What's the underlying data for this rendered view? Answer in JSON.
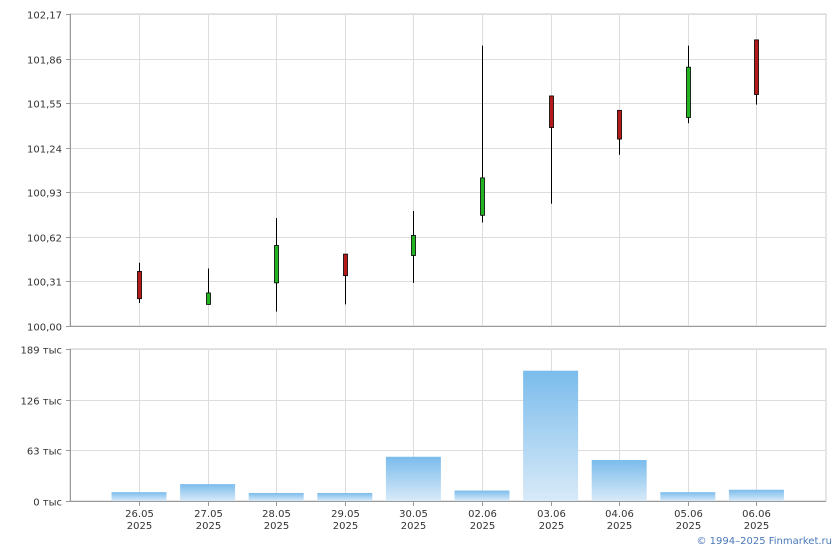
{
  "chart_data": [
    {
      "type": "candlestick",
      "categories": [
        [
          "26.05",
          "2025"
        ],
        [
          "27.05",
          "2025"
        ],
        [
          "28.05",
          "2025"
        ],
        [
          "29.05",
          "2025"
        ],
        [
          "30.05",
          "2025"
        ],
        [
          "02.06",
          "2025"
        ],
        [
          "03.06",
          "2025"
        ],
        [
          "04.06",
          "2025"
        ],
        [
          "05.06",
          "2025"
        ],
        [
          "06.06",
          "2025"
        ]
      ],
      "candles": [
        {
          "open": 100.38,
          "high": 100.44,
          "low": 100.16,
          "close": 100.19
        },
        {
          "open": 100.15,
          "high": 100.4,
          "low": 100.15,
          "close": 100.23
        },
        {
          "open": 100.3,
          "high": 100.75,
          "low": 100.1,
          "close": 100.56
        },
        {
          "open": 100.5,
          "high": 100.5,
          "low": 100.15,
          "close": 100.35
        },
        {
          "open": 100.49,
          "high": 100.8,
          "low": 100.3,
          "close": 100.63
        },
        {
          "open": 100.77,
          "high": 101.95,
          "low": 100.72,
          "close": 101.03
        },
        {
          "open": 101.6,
          "high": 101.6,
          "low": 100.85,
          "close": 101.38
        },
        {
          "open": 101.5,
          "high": 101.5,
          "low": 101.19,
          "close": 101.3
        },
        {
          "open": 101.45,
          "high": 101.95,
          "low": 101.41,
          "close": 101.8
        },
        {
          "open": 101.99,
          "high": 101.99,
          "low": 101.54,
          "close": 101.61
        }
      ],
      "ylim": [
        100.0,
        102.17
      ],
      "yticks": [
        "102,17",
        "101,86",
        "101,55",
        "101,24",
        "100,93",
        "100,62",
        "100,31",
        "100,00"
      ],
      "ytick_values": [
        102.17,
        101.86,
        101.55,
        101.24,
        100.93,
        100.62,
        100.31,
        100.0
      ],
      "up_color": "#22b322",
      "down_color": "#b31919",
      "grid": true
    },
    {
      "type": "bar",
      "values": [
        11000,
        21000,
        10000,
        10000,
        55000,
        13000,
        162000,
        51000,
        11000,
        14000
      ],
      "ylim": [
        0,
        189000
      ],
      "yticks": [
        "189 тыс",
        "126 тыс",
        "63 тыс",
        "0 тыс"
      ],
      "ytick_values": [
        189000,
        126000,
        63000,
        0
      ],
      "bar_color_top": "#7bbcec",
      "bar_color_bottom": "#d8eaf8",
      "grid": true
    }
  ],
  "footer": {
    "copyright": "© 1994–2025 Finmarket.ru"
  }
}
